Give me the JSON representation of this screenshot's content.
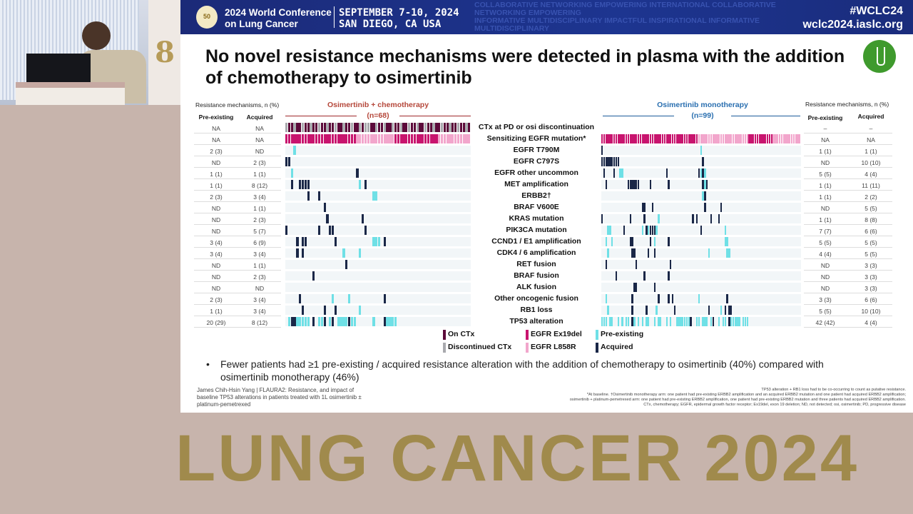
{
  "header": {
    "logo_text": "50",
    "conference": [
      "2024 World Conference",
      "on Lung Cancer"
    ],
    "date": [
      "SEPTEMBER 7-10, 2024",
      "SAN DIEGO, CA USA"
    ],
    "hashtag": "#WCLC24",
    "website": "wclc2024.iaslc.org",
    "background_words": [
      "COLLABORATIVE NETWORKING EMPOWERING INTERNATIONAL COLLABORATIVE NETWORKING EMPOWERING",
      "INFORMATIVE MULTIDISCIPLINARY IMPACTFUL INSPIRATIONAL INFORMATIVE MULTIDISCIPLINARY"
    ]
  },
  "slide": {
    "title": "No novel resistance mechanisms were detected in plasma with the addition of chemotherapy to osimertinib",
    "table_header": "Resistance mechanisms, n (%)",
    "col_pre": "Pre-existing",
    "col_acq": "Acquired",
    "left_arm": {
      "title": "Osimertinib + chemotherapy",
      "n": "(n=68)"
    },
    "right_arm": {
      "title": "Osimertinib monotherapy",
      "n": "(n=99)"
    },
    "rows": [
      {
        "label": "CTx at PD or osi discontinuation",
        "left_pre": "NA",
        "left_acq": "NA",
        "right_pre": "–",
        "right_acq": "–"
      },
      {
        "label": "Sensitizing EGFR mutation*",
        "left_pre": "NA",
        "left_acq": "NA",
        "right_pre": "NA",
        "right_acq": "NA"
      },
      {
        "label": "EGFR T790M",
        "left_pre": "2 (3)",
        "left_acq": "ND",
        "right_pre": "1 (1)",
        "right_acq": "1 (1)",
        "lm": [
          [
            3,
            "p"
          ]
        ],
        "rm": [
          [
            0,
            "a"
          ],
          [
            49,
            "p"
          ]
        ]
      },
      {
        "label": "EGFR C797S",
        "left_pre": "ND",
        "left_acq": "2 (3)",
        "right_pre": "ND",
        "right_acq": "10 (10)",
        "lm": [
          [
            0,
            "a"
          ],
          [
            1,
            "a"
          ]
        ],
        "rm": [
          [
            0,
            "a"
          ],
          [
            1,
            "a"
          ],
          [
            2,
            "a"
          ],
          [
            3,
            "a"
          ],
          [
            4,
            "a"
          ],
          [
            5,
            "a"
          ],
          [
            6,
            "a"
          ],
          [
            7,
            "a"
          ],
          [
            8,
            "a"
          ],
          [
            50,
            "a"
          ]
        ]
      },
      {
        "label": "EGFR other uncommon",
        "left_pre": "1 (1)",
        "left_acq": "1 (1)",
        "right_pre": "5 (5)",
        "right_acq": "4 (4)",
        "lm": [
          [
            2,
            "p"
          ],
          [
            26,
            "a"
          ]
        ],
        "rm": [
          [
            1,
            "a"
          ],
          [
            6,
            "a"
          ],
          [
            9,
            "p"
          ],
          [
            10,
            "p"
          ],
          [
            32,
            "a"
          ],
          [
            48,
            "a"
          ],
          [
            49,
            "p"
          ],
          [
            50,
            "a"
          ],
          [
            51,
            "p"
          ]
        ]
      },
      {
        "label": "MET amplification",
        "left_pre": "1 (1)",
        "left_acq": "8 (12)",
        "right_pre": "1 (1)",
        "right_acq": "11 (11)",
        "lm": [
          [
            2,
            "a"
          ],
          [
            5,
            "a"
          ],
          [
            6,
            "a"
          ],
          [
            7,
            "a"
          ],
          [
            8,
            "a"
          ],
          [
            27,
            "p"
          ],
          [
            29,
            "a"
          ]
        ],
        "rm": [
          [
            2,
            "a"
          ],
          [
            13,
            "a"
          ],
          [
            14,
            "a"
          ],
          [
            15,
            "a"
          ],
          [
            16,
            "a"
          ],
          [
            17,
            "a"
          ],
          [
            18,
            "a"
          ],
          [
            24,
            "a"
          ],
          [
            33,
            "a"
          ],
          [
            50,
            "a"
          ],
          [
            51,
            "p"
          ],
          [
            52,
            "a"
          ]
        ]
      },
      {
        "label": "ERBB2†",
        "left_pre": "2 (3)",
        "left_acq": "3 (4)",
        "right_pre": "1 (1)",
        "right_acq": "2 (2)",
        "lm": [
          [
            8,
            "a"
          ],
          [
            12,
            "a"
          ],
          [
            32,
            "p"
          ],
          [
            33,
            "p"
          ]
        ],
        "rm": [
          [
            50,
            "p"
          ],
          [
            51,
            "a"
          ]
        ]
      },
      {
        "label": "BRAF V600E",
        "left_pre": "ND",
        "left_acq": "1 (1)",
        "right_pre": "ND",
        "right_acq": "5 (5)",
        "lm": [
          [
            14,
            "a"
          ]
        ],
        "rm": [
          [
            20,
            "a"
          ],
          [
            21,
            "a"
          ],
          [
            25,
            "a"
          ],
          [
            51,
            "a"
          ],
          [
            59,
            "a"
          ]
        ]
      },
      {
        "label": "KRAS mutation",
        "left_pre": "ND",
        "left_acq": "2 (3)",
        "right_pre": "1 (1)",
        "right_acq": "8 (8)",
        "lm": [
          [
            15,
            "a"
          ],
          [
            28,
            "a"
          ]
        ],
        "rm": [
          [
            0,
            "a"
          ],
          [
            14,
            "a"
          ],
          [
            21,
            "a"
          ],
          [
            28,
            "p"
          ],
          [
            45,
            "a"
          ],
          [
            47,
            "a"
          ],
          [
            54,
            "a"
          ],
          [
            58,
            "a"
          ]
        ]
      },
      {
        "label": "PIK3CA mutation",
        "left_pre": "ND",
        "left_acq": "5 (7)",
        "right_pre": "7 (7)",
        "right_acq": "6 (6)",
        "lm": [
          [
            0,
            "a"
          ],
          [
            12,
            "a"
          ],
          [
            16,
            "a"
          ],
          [
            17,
            "a"
          ],
          [
            29,
            "a"
          ]
        ],
        "rm": [
          [
            3,
            "p"
          ],
          [
            4,
            "p"
          ],
          [
            11,
            "a"
          ],
          [
            20,
            "p"
          ],
          [
            22,
            "a"
          ],
          [
            23,
            "p"
          ],
          [
            24,
            "a"
          ],
          [
            25,
            "a"
          ],
          [
            26,
            "a"
          ],
          [
            27,
            "p"
          ],
          [
            49,
            "a"
          ],
          [
            61,
            "p"
          ]
        ]
      },
      {
        "label": "CCND1 / E1 amplification",
        "left_pre": "3 (4)",
        "left_acq": "6 (9)",
        "right_pre": "5 (5)",
        "right_acq": "5 (5)",
        "lm": [
          [
            4,
            "a"
          ],
          [
            6,
            "a"
          ],
          [
            7,
            "a"
          ],
          [
            18,
            "a"
          ],
          [
            32,
            "p"
          ],
          [
            33,
            "p"
          ],
          [
            34,
            "p"
          ],
          [
            36,
            "a"
          ]
        ],
        "rm": [
          [
            2,
            "p"
          ],
          [
            5,
            "p"
          ],
          [
            14,
            "a"
          ],
          [
            15,
            "a"
          ],
          [
            24,
            "a"
          ],
          [
            26,
            "p"
          ],
          [
            33,
            "a"
          ],
          [
            61,
            "p"
          ],
          [
            62,
            "p"
          ]
        ]
      },
      {
        "label": "CDK4 / 6 amplification",
        "left_pre": "3 (4)",
        "left_acq": "3 (4)",
        "right_pre": "4 (4)",
        "right_acq": "5 (5)",
        "lm": [
          [
            4,
            "a"
          ],
          [
            6,
            "a"
          ],
          [
            21,
            "p"
          ],
          [
            27,
            "p"
          ]
        ],
        "rm": [
          [
            3,
            "p"
          ],
          [
            15,
            "a"
          ],
          [
            16,
            "a"
          ],
          [
            23,
            "a"
          ],
          [
            26,
            "a"
          ],
          [
            53,
            "p"
          ],
          [
            62,
            "p"
          ],
          [
            63,
            "p"
          ]
        ]
      },
      {
        "label": "RET fusion",
        "left_pre": "ND",
        "left_acq": "1 (1)",
        "right_pre": "ND",
        "right_acq": "3 (3)",
        "lm": [
          [
            22,
            "a"
          ]
        ],
        "rm": [
          [
            2,
            "a"
          ],
          [
            17,
            "a"
          ],
          [
            34,
            "a"
          ]
        ]
      },
      {
        "label": "BRAF fusion",
        "left_pre": "ND",
        "left_acq": "2 (3)",
        "right_pre": "ND",
        "right_acq": "3 (3)",
        "lm": [
          [
            10,
            "a"
          ]
        ],
        "rm": [
          [
            7,
            "a"
          ],
          [
            21,
            "a"
          ],
          [
            33,
            "a"
          ]
        ]
      },
      {
        "label": "ALK fusion",
        "left_pre": "ND",
        "left_acq": "ND",
        "right_pre": "ND",
        "right_acq": "3 (3)",
        "rm": [
          [
            16,
            "a"
          ],
          [
            17,
            "a"
          ],
          [
            26,
            "a"
          ]
        ]
      },
      {
        "label": "Other oncogenic fusion",
        "left_pre": "2 (3)",
        "left_acq": "3 (4)",
        "right_pre": "3 (3)",
        "right_acq": "6 (6)",
        "lm": [
          [
            5,
            "a"
          ],
          [
            17,
            "p"
          ],
          [
            23,
            "p"
          ],
          [
            36,
            "a"
          ]
        ],
        "rm": [
          [
            2,
            "p"
          ],
          [
            15,
            "a"
          ],
          [
            28,
            "a"
          ],
          [
            33,
            "a"
          ],
          [
            35,
            "a"
          ],
          [
            48,
            "p"
          ],
          [
            62,
            "a"
          ]
        ]
      },
      {
        "label": "RB1 loss",
        "left_pre": "1 (1)",
        "left_acq": "3 (4)",
        "right_pre": "5 (5)",
        "right_acq": "10 (10)",
        "lm": [
          [
            6,
            "a"
          ],
          [
            14,
            "a"
          ],
          [
            18,
            "a"
          ],
          [
            27,
            "p"
          ]
        ],
        "rm": [
          [
            3,
            "p"
          ],
          [
            15,
            "a"
          ],
          [
            22,
            "a"
          ],
          [
            27,
            "p"
          ],
          [
            36,
            "a"
          ],
          [
            53,
            "a"
          ],
          [
            59,
            "p"
          ],
          [
            61,
            "a"
          ],
          [
            63,
            "a"
          ],
          [
            64,
            "a"
          ]
        ]
      },
      {
        "label": "TP53 alteration",
        "left_pre": "20 (29)",
        "left_acq": "8 (12)",
        "right_pre": "42 (42)",
        "right_acq": "4 (4)",
        "lm": [
          [
            1,
            "p"
          ],
          [
            2,
            "a"
          ],
          [
            3,
            "a"
          ],
          [
            4,
            "p"
          ],
          [
            5,
            "p"
          ],
          [
            6,
            "p"
          ],
          [
            7,
            "p"
          ],
          [
            8,
            "p"
          ],
          [
            10,
            "a"
          ],
          [
            12,
            "p"
          ],
          [
            13,
            "p"
          ],
          [
            14,
            "a"
          ],
          [
            16,
            "p"
          ],
          [
            17,
            "a"
          ],
          [
            19,
            "p"
          ],
          [
            20,
            "p"
          ],
          [
            21,
            "p"
          ],
          [
            22,
            "p"
          ],
          [
            23,
            "a"
          ],
          [
            24,
            "p"
          ],
          [
            25,
            "p"
          ],
          [
            32,
            "p"
          ],
          [
            36,
            "a"
          ],
          [
            37,
            "p"
          ],
          [
            38,
            "p"
          ],
          [
            39,
            "p"
          ],
          [
            40,
            "p"
          ]
        ],
        "rm": [
          [
            0,
            "p"
          ],
          [
            1,
            "p"
          ],
          [
            2,
            "p"
          ],
          [
            4,
            "p"
          ],
          [
            5,
            "p"
          ],
          [
            8,
            "p"
          ],
          [
            10,
            "p"
          ],
          [
            12,
            "p"
          ],
          [
            13,
            "p"
          ],
          [
            15,
            "a"
          ],
          [
            16,
            "p"
          ],
          [
            18,
            "p"
          ],
          [
            20,
            "p"
          ],
          [
            22,
            "p"
          ],
          [
            23,
            "p"
          ],
          [
            26,
            "p"
          ],
          [
            28,
            "p"
          ],
          [
            29,
            "p"
          ],
          [
            32,
            "p"
          ],
          [
            34,
            "p"
          ],
          [
            37,
            "p"
          ],
          [
            38,
            "p"
          ],
          [
            39,
            "p"
          ],
          [
            40,
            "p"
          ],
          [
            41,
            "p"
          ],
          [
            42,
            "p"
          ],
          [
            43,
            "p"
          ],
          [
            44,
            "a"
          ],
          [
            47,
            "p"
          ],
          [
            48,
            "p"
          ],
          [
            50,
            "p"
          ],
          [
            51,
            "p"
          ],
          [
            52,
            "p"
          ],
          [
            54,
            "p"
          ],
          [
            55,
            "a"
          ],
          [
            58,
            "p"
          ],
          [
            60,
            "p"
          ],
          [
            61,
            "p"
          ],
          [
            63,
            "a"
          ],
          [
            64,
            "p"
          ],
          [
            65,
            "p"
          ],
          [
            66,
            "p"
          ],
          [
            67,
            "p"
          ],
          [
            68,
            "p"
          ],
          [
            70,
            "p"
          ],
          [
            71,
            "p"
          ],
          [
            72,
            "p"
          ]
        ]
      }
    ],
    "legend": [
      {
        "label": "On CTx",
        "color": "#5c0a3a"
      },
      {
        "label": "Discontinued CTx",
        "color": "#a9aaae"
      },
      {
        "label": "EGFR Ex19del",
        "color": "#c8146e"
      },
      {
        "label": "EGFR L858R",
        "color": "#f2a6cc"
      },
      {
        "label": "Pre-existing",
        "color": "#6fe0e6"
      },
      {
        "label": "Acquired",
        "color": "#1a2747"
      }
    ],
    "bullet": "Fewer patients had ≥1 pre-existing / acquired resistance alteration with the addition of chemotherapy to osimertinib (40%) compared with osimertinib monotherapy (46%)",
    "citation": "James Chih-Hsin Yang | FLAURA2: Resistance, and impact of baseline TP53 alterations in patients treated with 1L osimertinib ± platinum-pemetrexed",
    "footnotes": [
      "TP53 alteration + RB1 loss had to be co-occurring to count as putative resistance.",
      "*At baseline. †Osimertinib monotherapy arm: one patient had pre-existing ERBB2 amplification and an acquired ERBB2 mutation and one patient had acquired ERBB2 amplification;",
      "osimertinib + platinum-pemetrexed arm: one patient had pre-existing ERBB2 amplification, one patient had pre-existing ERBB2 mutation and three patients had acquired ERBB2 amplification.",
      "CTx, chemotherapy; EGFR, epidermal growth factor receptor; Ex19del, exon 19 deletion; ND, not detected; osi, osimertinib; PD, progressive disease"
    ]
  },
  "footer": {
    "banner": "LUNG CANCER 2024"
  }
}
